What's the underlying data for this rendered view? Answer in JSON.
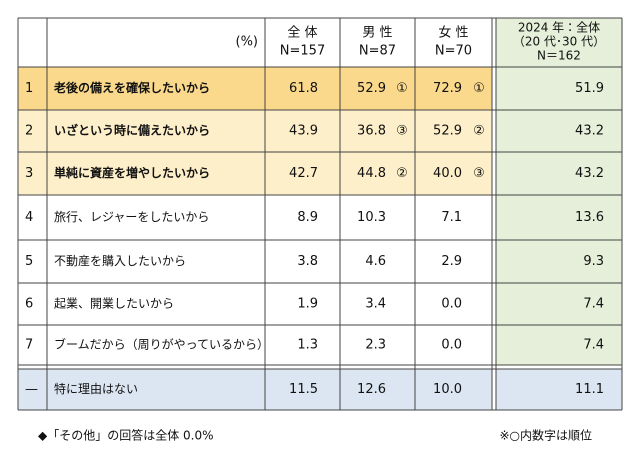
{
  "header": {
    "unit": "(%)",
    "columns": [
      {
        "title": "全 体",
        "n": "N=157"
      },
      {
        "title": "男 性",
        "n": "N=87"
      },
      {
        "title": "女 性",
        "n": "N=70"
      },
      {
        "title": "2024 年：全体",
        "subtitle": "（20 代･30 代）",
        "n": "N＝162"
      }
    ]
  },
  "rows": [
    {
      "rank": "1",
      "label": "老後の備えを確保したいから",
      "total": "61.8",
      "male": "52.9",
      "male_rank": "①",
      "female": "72.9",
      "female_rank": "①",
      "y2024": "51.9"
    },
    {
      "rank": "2",
      "label": "いざという時に備えたいから",
      "total": "43.9",
      "male": "36.8",
      "male_rank": "③",
      "female": "52.9",
      "female_rank": "②",
      "y2024": "43.2"
    },
    {
      "rank": "3",
      "label": "単純に資産を増やしたいから",
      "total": "42.7",
      "male": "44.8",
      "male_rank": "②",
      "female": "40.0",
      "female_rank": "③",
      "y2024": "43.2"
    },
    {
      "rank": "4",
      "label": "旅行、レジャーをしたいから",
      "total": "8.9",
      "male": "10.3",
      "female": "7.1",
      "y2024": "13.6"
    },
    {
      "rank": "5",
      "label": "不動産を購入したいから",
      "total": "3.8",
      "male": "4.6",
      "female": "2.9",
      "y2024": "9.3"
    },
    {
      "rank": "6",
      "label": "起業、開業したいから",
      "total": "1.9",
      "male": "3.4",
      "female": "0.0",
      "y2024": "7.4"
    },
    {
      "rank": "7",
      "label": "ブームだから（周りがやっているから）",
      "total": "1.3",
      "male": "2.3",
      "female": "0.0",
      "y2024": "7.4"
    },
    {
      "rank": "—",
      "label": "特に理由はない",
      "total": "11.5",
      "male": "12.6",
      "female": "10.0",
      "y2024": "11.1"
    }
  ],
  "notes": [
    "◆「その他」の回答は全体 0.0%",
    "※○内数字は順位"
  ]
}
